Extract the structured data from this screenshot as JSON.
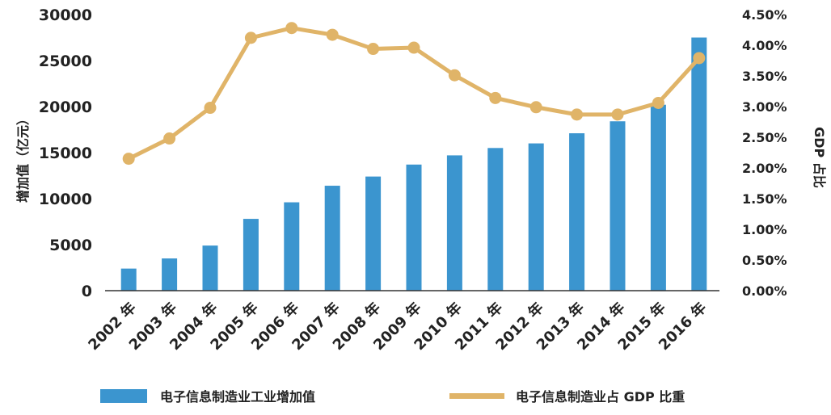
{
  "chart_data": {
    "type": "bar+line",
    "categories": [
      "2002 年",
      "2003 年",
      "2004 年",
      "2005 年",
      "2006 年",
      "2007 年",
      "2008 年",
      "2009 年",
      "2010 年",
      "2011 年",
      "2012 年",
      "2013 年",
      "2014 年",
      "2015 年",
      "2016 年"
    ],
    "series": [
      {
        "name": "电子信息制造业工业增加值",
        "type": "bar",
        "axis": "left",
        "color": "#3b95cf",
        "values": [
          2400,
          3500,
          4900,
          7800,
          9600,
          11400,
          12400,
          13700,
          14700,
          15500,
          16000,
          17100,
          18400,
          20200,
          27500
        ]
      },
      {
        "name": "电子信息制造业占 GDP 比重",
        "type": "line",
        "axis": "right",
        "color": "#e0b468",
        "values": [
          2.15,
          2.48,
          2.98,
          4.12,
          4.28,
          4.17,
          3.94,
          3.96,
          3.51,
          3.14,
          2.99,
          2.87,
          2.87,
          3.06,
          3.79
        ]
      }
    ],
    "ylabel": "增加值（亿元）",
    "ylabel_right": "GDP 占比",
    "ylim": [
      0,
      30000
    ],
    "yticks": [
      "0",
      "5000",
      "10000",
      "15000",
      "20000",
      "25000",
      "30000"
    ],
    "ylim_right": [
      0,
      4.5
    ],
    "yticks_right": [
      "0.00%",
      "0.50%",
      "1.00%",
      "1.50%",
      "2.00%",
      "2.50%",
      "3.00%",
      "3.50%",
      "4.00%",
      "4.50%"
    ],
    "legend_position": "bottom",
    "grid": false
  }
}
